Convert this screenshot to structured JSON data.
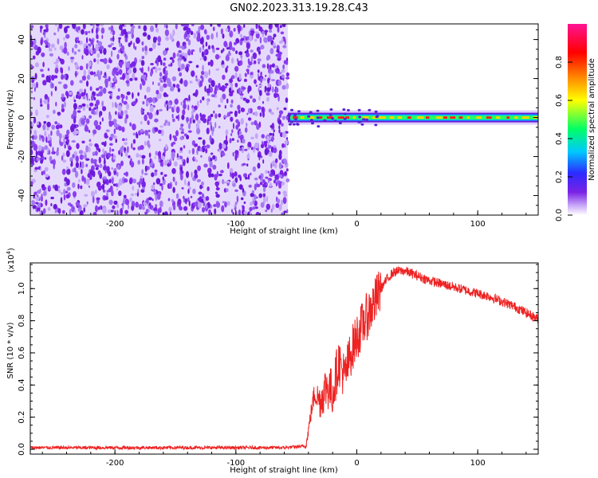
{
  "title": "GN02.2023.313.19.28.C43",
  "colors": {
    "snr_line": "#ee2222",
    "noise_purple": "#7a22e6",
    "colorbar": [
      "#ffffff",
      "#c8a8f8",
      "#7a22e6",
      "#2b2bff",
      "#00c8ff",
      "#00ff66",
      "#ffff00",
      "#ff8800",
      "#ff0000",
      "#ff1493"
    ]
  },
  "chart_data": [
    {
      "type": "heatmap",
      "xlabel": "Height of straight line (km)",
      "ylabel": "Frequency (Hz)",
      "xlim": [
        -270,
        150
      ],
      "ylim": [
        -50,
        48
      ],
      "xticks": [
        -200,
        -100,
        0,
        100
      ],
      "xtick_labels": [
        "-200",
        "-100",
        "0",
        "100"
      ],
      "yticks": [
        -40,
        -20,
        0,
        20,
        40
      ],
      "ytick_labels": [
        "-40",
        "-20",
        "0",
        "20",
        "40"
      ],
      "noise_region_x": [
        -270,
        -57
      ],
      "signal_region_x": [
        -57,
        150
      ],
      "signal_center_freq_hz": 0,
      "colorbar": {
        "label": "Normalized spectral amplitude",
        "range": [
          0,
          1
        ],
        "ticks": [
          0.0,
          0.2,
          0.4,
          0.6,
          0.8
        ],
        "tick_labels": [
          "0.0",
          "0.2",
          "0.4",
          "0.6",
          "0.8"
        ]
      }
    },
    {
      "type": "line",
      "xlabel": "Height of straight line (km)",
      "ylabel": "SNR (10 * v/v)",
      "multiplier": "(x10",
      "multiplier_exp": "4",
      "multiplier_close": ")",
      "xlim": [
        -270,
        150
      ],
      "ylim": [
        -0.03,
        1.16
      ],
      "xticks": [
        -200,
        -100,
        0,
        100
      ],
      "xtick_labels": [
        "-200",
        "-100",
        "0",
        "100"
      ],
      "yticks": [
        0.0,
        0.2,
        0.4,
        0.6,
        0.8,
        1.0
      ],
      "ytick_labels": [
        "0.0",
        "0.2",
        "0.4",
        "0.6",
        "0.8",
        "1.0"
      ],
      "x": [
        -270,
        -60,
        -42,
        -38,
        -35,
        -30,
        -25,
        -20,
        -15,
        -10,
        -5,
        0,
        5,
        10,
        15,
        20,
        25,
        30,
        35,
        40,
        50,
        60,
        70,
        80,
        90,
        100,
        110,
        120,
        130,
        140,
        150
      ],
      "y": [
        0.01,
        0.01,
        0.02,
        0.22,
        0.35,
        0.3,
        0.4,
        0.35,
        0.55,
        0.45,
        0.6,
        0.7,
        0.78,
        0.85,
        0.92,
        1.0,
        1.06,
        1.1,
        1.11,
        1.11,
        1.08,
        1.05,
        1.03,
        1.01,
        0.99,
        0.97,
        0.95,
        0.92,
        0.89,
        0.85,
        0.81
      ]
    }
  ]
}
